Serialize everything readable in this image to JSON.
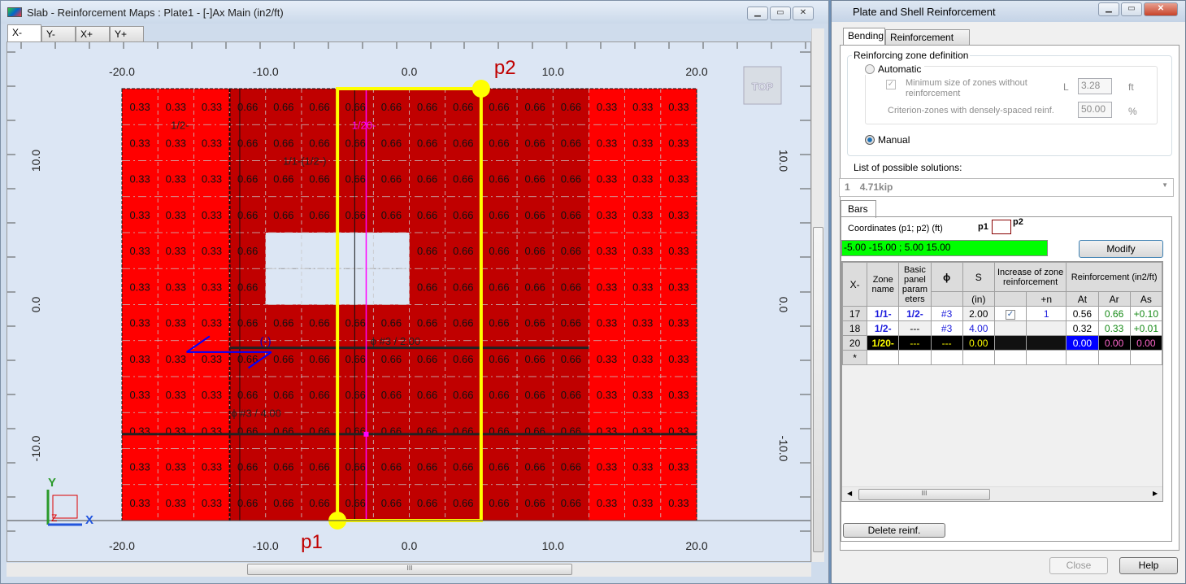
{
  "left_window": {
    "title": "Slab - Reinforcement Maps : Plate1 - [-]Ax Main (in2/ft)",
    "tabs": [
      "X-",
      "Y-",
      "X+",
      "Y+"
    ],
    "active_tab": "X-",
    "view_cube_label": "TOP",
    "axis_x_ticks": [
      "-20.0",
      "-10.0",
      "0.0",
      "10.0",
      "20.0"
    ],
    "axis_y_ticks": [
      "10.0",
      "0.0",
      "-10.0"
    ],
    "axis_labels": {
      "x": "X",
      "y": "Y",
      "z": "Z"
    },
    "point_labels": {
      "p1": "p1",
      "p2": "p2"
    },
    "points": {
      "p1": [
        -5,
        -15
      ],
      "p2": [
        5,
        15
      ]
    },
    "slab_extent_ft": {
      "x": [
        -20,
        20
      ],
      "y": [
        -15,
        15
      ]
    },
    "opening_ft": {
      "x": [
        -10,
        0
      ],
      "y": [
        0,
        5
      ]
    },
    "zone_labels": [
      "1/2-",
      "1/1-(1/2-)",
      "1/20-"
    ],
    "bar_labels": [
      "ϕ #3 / 2.00",
      "ϕ #3 / 4.00"
    ],
    "sign_label": "(-)",
    "colors": {
      "low": "#ff0000",
      "high": "#c00000",
      "selection": "#ffff00",
      "zone_20": "#ff00ff",
      "background": "#dce6f4"
    },
    "cell_values": [
      [
        "0.33",
        "0.33",
        "0.33",
        "0.66",
        "0.66",
        "0.66",
        "0.66",
        "0.66",
        "0.66",
        "0.66",
        "0.66",
        "0.66",
        "0.66",
        "0.33",
        "0.33",
        "0.33"
      ],
      [
        "0.33",
        "0.33",
        "0.33",
        "0.66",
        "0.66",
        "0.66",
        "0.66",
        "0.66",
        "0.66",
        "0.66",
        "0.66",
        "0.66",
        "0.66",
        "0.33",
        "0.33",
        "0.33"
      ],
      [
        "0.33",
        "0.33",
        "0.33",
        "0.66",
        "0.66",
        "0.66",
        "0.66",
        "0.66",
        "0.66",
        "0.66",
        "0.66",
        "0.66",
        "0.66",
        "0.33",
        "0.33",
        "0.33"
      ],
      [
        "0.33",
        "0.33",
        "0.33",
        "0.66",
        "0.66",
        "0.66",
        "0.66",
        "0.66",
        "0.66",
        "0.66",
        "0.66",
        "0.66",
        "0.66",
        "0.33",
        "0.33",
        "0.33"
      ],
      [
        "0.33",
        "0.33",
        "0.33",
        "0.66",
        null,
        null,
        null,
        null,
        "0.66",
        "0.66",
        "0.66",
        "0.66",
        "0.66",
        "0.33",
        "0.33",
        "0.33"
      ],
      [
        "0.33",
        "0.33",
        "0.33",
        "0.66",
        null,
        null,
        null,
        null,
        "0.66",
        "0.66",
        "0.66",
        "0.66",
        "0.66",
        "0.33",
        "0.33",
        "0.33"
      ],
      [
        "0.33",
        "0.33",
        "0.33",
        "0.66",
        "0.66",
        "0.66",
        "0.66",
        "0.66",
        "0.66",
        "0.66",
        "0.66",
        "0.66",
        "0.66",
        "0.33",
        "0.33",
        "0.33"
      ],
      [
        "0.33",
        "0.33",
        "0.33",
        "0.66",
        "0.66",
        "0.66",
        "0.66",
        "0.66",
        "0.66",
        "0.66",
        "0.66",
        "0.66",
        "0.66",
        "0.33",
        "0.33",
        "0.33"
      ],
      [
        "0.33",
        "0.33",
        "0.33",
        "0.66",
        "0.66",
        "0.66",
        "0.66",
        "0.66",
        "0.66",
        "0.66",
        "0.66",
        "0.66",
        "0.66",
        "0.33",
        "0.33",
        "0.33"
      ],
      [
        "0.33",
        "0.33",
        "0.33",
        "0.66",
        "0.66",
        "0.66",
        "0.66",
        "0.66",
        "0.66",
        "0.66",
        "0.66",
        "0.66",
        "0.66",
        "0.33",
        "0.33",
        "0.33"
      ],
      [
        "0.33",
        "0.33",
        "0.33",
        "0.66",
        "0.66",
        "0.66",
        "0.66",
        "0.66",
        "0.66",
        "0.66",
        "0.66",
        "0.66",
        "0.66",
        "0.33",
        "0.33",
        "0.33"
      ],
      [
        "0.33",
        "0.33",
        "0.33",
        "0.66",
        "0.66",
        "0.66",
        "0.66",
        "0.66",
        "0.66",
        "0.66",
        "0.66",
        "0.66",
        "0.66",
        "0.33",
        "0.33",
        "0.33"
      ]
    ]
  },
  "dialog": {
    "title": "Plate and Shell Reinforcement",
    "tabs": [
      "Bending",
      "Reinforcement maps"
    ],
    "group_title": "Reinforcing zone definition",
    "automatic_label": "Automatic",
    "min_size_label": "Minimum size of zones without reinforcement",
    "L_label": "L",
    "L_value": "3.28",
    "L_unit": "ft",
    "criterion_label": "Criterion-zones with densely-spaced reinf.",
    "criterion_value": "50.00",
    "criterion_unit": "%",
    "manual_label": "Manual",
    "mode": "Manual",
    "solutions_label": "List of possible solutions:",
    "solution_index": "1",
    "solution_value": "4.71kip",
    "bars_tab": "Bars",
    "coords_label": "Coordinates (p1; p2) (ft)",
    "coords_p1": "p1",
    "coords_p2": "p2",
    "coords_value": "-5.00  -15.00  ;  5.00  15.00",
    "modify_label": "Modify",
    "table": {
      "headers": {
        "x": "X-",
        "zone": "Zone name",
        "basic": "Basic panel param eters",
        "phi": "ϕ",
        "s": "S",
        "s_unit": "(in)",
        "increase": "Increase of zone reinforcement",
        "plus_n": "+n",
        "reinf": "Reinforcement (in2/ft)",
        "at": "At",
        "ar": "Ar",
        "as": "As"
      },
      "rows": [
        {
          "id": "17",
          "zone": "1/1-",
          "basic": "1/2-",
          "phi": "#3",
          "s": "2.00",
          "checked": true,
          "n": "1",
          "at": "0.56",
          "ar": "0.66",
          "as": "+0.10"
        },
        {
          "id": "18",
          "zone": "1/2-",
          "basic": "---",
          "phi": "#3",
          "s": "4.00",
          "checked": false,
          "n": "",
          "at": "0.32",
          "ar": "0.33",
          "as": "+0.01"
        },
        {
          "id": "20",
          "zone": "1/20-",
          "basic": "---",
          "phi": "---",
          "s": "0.00",
          "checked": false,
          "n": "",
          "at": "0.00",
          "ar": "0.00",
          "as": "0.00"
        }
      ],
      "new_row": "*"
    },
    "delete_label": "Delete reinf.",
    "close_label": "Close",
    "help_label": "Help"
  }
}
